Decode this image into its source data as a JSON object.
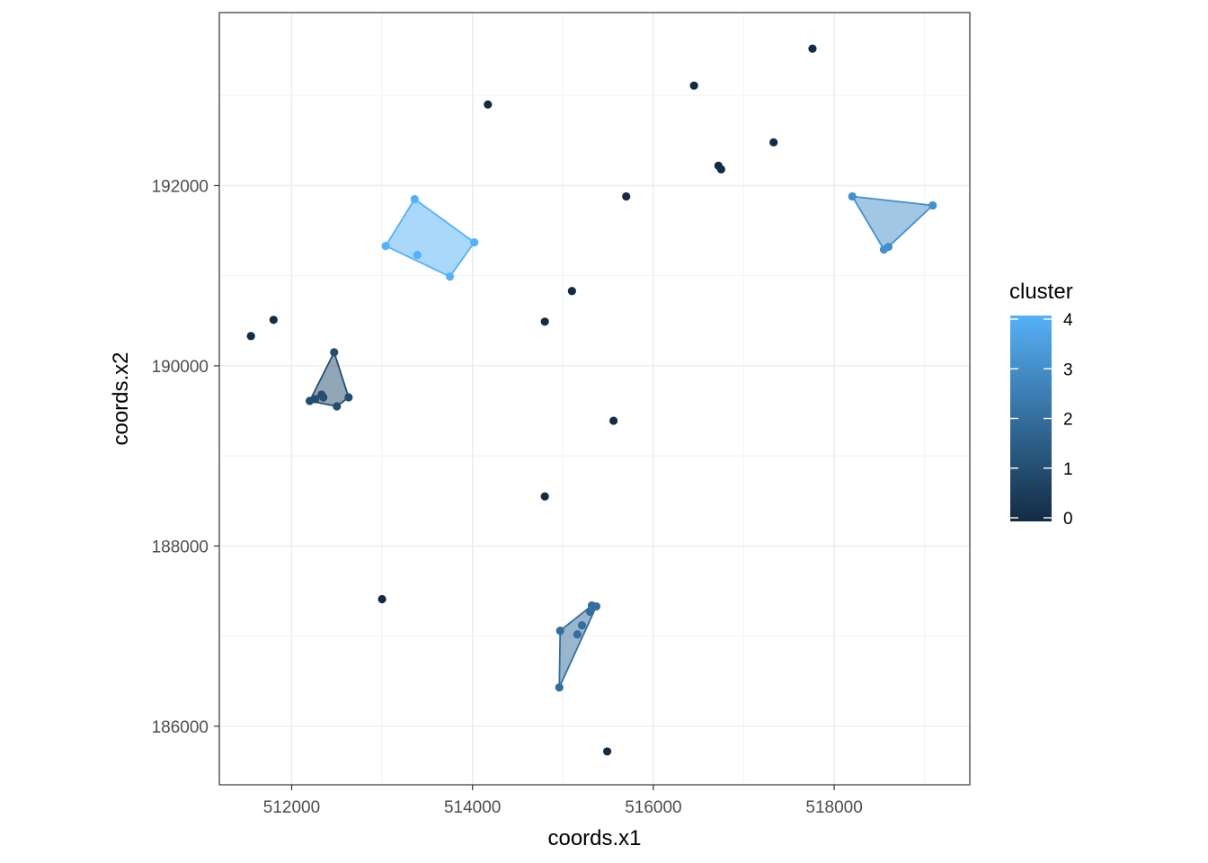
{
  "chart_data": {
    "type": "scatter",
    "xlabel": "coords.x1",
    "ylabel": "coords.x2",
    "xlim": [
      511200,
      519500
    ],
    "ylim": [
      185350,
      193920
    ],
    "x_ticks": [
      512000,
      514000,
      516000,
      518000
    ],
    "y_ticks": [
      186000,
      188000,
      190000,
      192000
    ],
    "x_minor": [
      511000,
      513000,
      515000,
      517000,
      519000
    ],
    "y_minor": [
      185000,
      187000,
      189000,
      191000,
      193000
    ],
    "grid": true,
    "legend": {
      "title": "cluster",
      "placement": "right",
      "min": 0,
      "max": 4,
      "labels": [
        "4",
        "3",
        "2",
        "1",
        "0"
      ],
      "values": [
        4,
        3,
        2,
        1,
        0
      ],
      "color_low": "#132B43",
      "color_high": "#56B1F7"
    },
    "points": [
      {
        "x": 511550,
        "y": 190330,
        "cluster": 0
      },
      {
        "x": 511800,
        "y": 190510,
        "cluster": 0
      },
      {
        "x": 513000,
        "y": 187410,
        "cluster": 0
      },
      {
        "x": 514170,
        "y": 192900,
        "cluster": 0
      },
      {
        "x": 514800,
        "y": 190490,
        "cluster": 0
      },
      {
        "x": 515100,
        "y": 190830,
        "cluster": 0
      },
      {
        "x": 514800,
        "y": 188550,
        "cluster": 0
      },
      {
        "x": 515560,
        "y": 189390,
        "cluster": 0
      },
      {
        "x": 515700,
        "y": 191880,
        "cluster": 0
      },
      {
        "x": 515490,
        "y": 185720,
        "cluster": 0
      },
      {
        "x": 516450,
        "y": 193110,
        "cluster": 0
      },
      {
        "x": 516720,
        "y": 192220,
        "cluster": 0
      },
      {
        "x": 516750,
        "y": 192180,
        "cluster": 0
      },
      {
        "x": 517330,
        "y": 192480,
        "cluster": 0
      },
      {
        "x": 517760,
        "y": 193520,
        "cluster": 0
      },
      {
        "x": 512470,
        "y": 190150,
        "cluster": 1
      },
      {
        "x": 512200,
        "y": 189610,
        "cluster": 1
      },
      {
        "x": 512260,
        "y": 189630,
        "cluster": 1
      },
      {
        "x": 512330,
        "y": 189680,
        "cluster": 1
      },
      {
        "x": 512350,
        "y": 189650,
        "cluster": 1
      },
      {
        "x": 512500,
        "y": 189550,
        "cluster": 1
      },
      {
        "x": 512630,
        "y": 189650,
        "cluster": 1
      },
      {
        "x": 514970,
        "y": 187060,
        "cluster": 2
      },
      {
        "x": 514960,
        "y": 186430,
        "cluster": 2
      },
      {
        "x": 515160,
        "y": 187020,
        "cluster": 2
      },
      {
        "x": 515210,
        "y": 187120,
        "cluster": 2
      },
      {
        "x": 515300,
        "y": 187270,
        "cluster": 2
      },
      {
        "x": 515320,
        "y": 187340,
        "cluster": 2
      },
      {
        "x": 515370,
        "y": 187330,
        "cluster": 2
      },
      {
        "x": 518200,
        "y": 191880,
        "cluster": 3
      },
      {
        "x": 518550,
        "y": 191290,
        "cluster": 3
      },
      {
        "x": 518600,
        "y": 191320,
        "cluster": 3
      },
      {
        "x": 519090,
        "y": 191780,
        "cluster": 3
      },
      {
        "x": 513040,
        "y": 191330,
        "cluster": 4
      },
      {
        "x": 513360,
        "y": 191850,
        "cluster": 4
      },
      {
        "x": 513390,
        "y": 191230,
        "cluster": 4
      },
      {
        "x": 513750,
        "y": 190990,
        "cluster": 4
      },
      {
        "x": 514020,
        "y": 191370,
        "cluster": 4
      }
    ],
    "hulls": [
      {
        "cluster": 1,
        "vertices": [
          [
            512470,
            190150
          ],
          [
            512630,
            189650
          ],
          [
            512500,
            189550
          ],
          [
            512200,
            189610
          ]
        ]
      },
      {
        "cluster": 2,
        "vertices": [
          [
            514970,
            187060
          ],
          [
            515320,
            187340
          ],
          [
            515370,
            187330
          ],
          [
            514960,
            186430
          ]
        ]
      },
      {
        "cluster": 3,
        "vertices": [
          [
            518200,
            191880
          ],
          [
            519090,
            191780
          ],
          [
            518600,
            191320
          ],
          [
            518550,
            191290
          ]
        ]
      },
      {
        "cluster": 4,
        "vertices": [
          [
            513360,
            191850
          ],
          [
            514020,
            191370
          ],
          [
            513750,
            190990
          ],
          [
            513040,
            191330
          ]
        ]
      }
    ]
  }
}
